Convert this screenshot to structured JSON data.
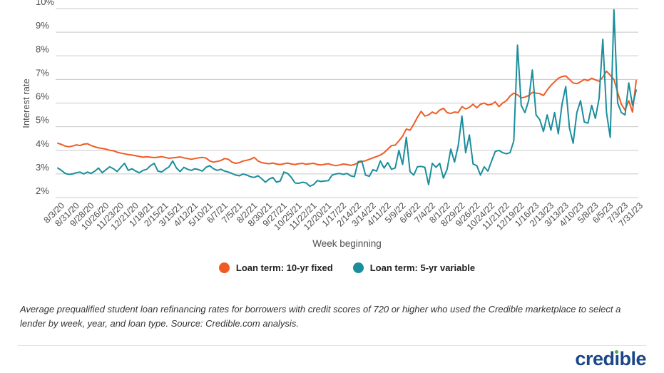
{
  "chart_data": {
    "type": "line",
    "x_axis_label": "Week beginning",
    "y_axis_label": "Interest rate",
    "x_frequency": "weekly",
    "x_tick_every_n_points": 4,
    "x_tick_labels": [
      "8/3/20",
      "8/31/20",
      "9/28/20",
      "10/26/20",
      "11/23/20",
      "12/21/20",
      "1/18/21",
      "2/15/21",
      "3/15/21",
      "4/12/21",
      "5/10/21",
      "6/7/21",
      "7/5/21",
      "8/2/21",
      "8/30/21",
      "9/27/21",
      "10/25/21",
      "11/22/21",
      "12/20/21",
      "1/17/22",
      "2/14/22",
      "3/14/22",
      "4/11/22",
      "5/9/22",
      "6/6/22",
      "7/4/22",
      "8/1/22",
      "8/29/22",
      "9/26/22",
      "10/24/22",
      "11/21/22",
      "12/19/22",
      "1/16/23",
      "2/13/23",
      "3/13/23",
      "4/10/23",
      "5/8/23",
      "6/5/23",
      "7/3/23",
      "7/31/23"
    ],
    "y_ticks": [
      2,
      3,
      4,
      5,
      6,
      7,
      8,
      9,
      10
    ],
    "y_tick_labels": [
      "2%",
      "3%",
      "4%",
      "5%",
      "6%",
      "7%",
      "8%",
      "9%",
      "10%"
    ],
    "ylim": [
      2,
      10
    ],
    "grid": "horizontal",
    "gridline_color": "#c8c8c8",
    "axis_text_color": "#4d4d4d",
    "legend_position": "bottom",
    "series": [
      {
        "name": "Loan term: 10-yr fixed",
        "color": "#f05b25",
        "values": [
          4.3,
          4.25,
          4.18,
          4.15,
          4.18,
          4.23,
          4.2,
          4.26,
          4.28,
          4.2,
          4.15,
          4.1,
          4.08,
          4.05,
          4.0,
          3.98,
          3.92,
          3.88,
          3.85,
          3.82,
          3.8,
          3.77,
          3.74,
          3.71,
          3.73,
          3.71,
          3.69,
          3.71,
          3.73,
          3.7,
          3.66,
          3.68,
          3.7,
          3.72,
          3.68,
          3.65,
          3.62,
          3.65,
          3.68,
          3.7,
          3.67,
          3.55,
          3.5,
          3.53,
          3.57,
          3.65,
          3.62,
          3.5,
          3.45,
          3.48,
          3.55,
          3.58,
          3.62,
          3.7,
          3.55,
          3.48,
          3.45,
          3.43,
          3.46,
          3.42,
          3.4,
          3.43,
          3.46,
          3.42,
          3.4,
          3.43,
          3.45,
          3.41,
          3.43,
          3.45,
          3.4,
          3.38,
          3.41,
          3.43,
          3.38,
          3.35,
          3.38,
          3.42,
          3.4,
          3.36,
          3.4,
          3.47,
          3.52,
          3.56,
          3.62,
          3.68,
          3.74,
          3.8,
          3.9,
          4.05,
          4.2,
          4.22,
          4.4,
          4.6,
          4.9,
          4.85,
          5.1,
          5.4,
          5.65,
          5.45,
          5.5,
          5.62,
          5.55,
          5.7,
          5.78,
          5.6,
          5.56,
          5.62,
          5.6,
          5.85,
          5.75,
          5.82,
          5.95,
          5.8,
          5.95,
          6.0,
          5.92,
          5.95,
          6.05,
          5.85,
          6.0,
          6.1,
          6.3,
          6.42,
          6.35,
          6.22,
          6.25,
          6.32,
          6.45,
          6.42,
          6.4,
          6.32,
          6.55,
          6.75,
          6.9,
          7.05,
          7.12,
          7.15,
          7.0,
          6.85,
          6.82,
          6.9,
          7.0,
          6.95,
          7.05,
          6.98,
          6.92,
          7.1,
          7.35,
          7.18,
          7.0,
          6.45,
          5.95,
          5.7,
          6.1,
          5.62,
          6.95
        ]
      },
      {
        "name": "Loan term: 5-yr variable",
        "color": "#1b8e9b",
        "values": [
          3.25,
          3.15,
          3.02,
          2.98,
          3.0,
          3.05,
          3.08,
          3.0,
          3.08,
          3.02,
          3.12,
          3.25,
          3.05,
          3.18,
          3.3,
          3.22,
          3.1,
          3.28,
          3.45,
          3.15,
          3.22,
          3.12,
          3.05,
          3.15,
          3.2,
          3.35,
          3.45,
          3.12,
          3.08,
          3.2,
          3.3,
          3.55,
          3.25,
          3.1,
          3.28,
          3.2,
          3.15,
          3.22,
          3.18,
          3.12,
          3.28,
          3.35,
          3.22,
          3.15,
          3.2,
          3.12,
          3.08,
          3.02,
          2.95,
          2.92,
          3.0,
          2.95,
          2.88,
          2.85,
          2.92,
          2.8,
          2.65,
          2.78,
          2.85,
          2.65,
          2.7,
          3.08,
          3.02,
          2.85,
          2.62,
          2.6,
          2.65,
          2.62,
          2.48,
          2.55,
          2.72,
          2.68,
          2.7,
          2.72,
          2.95,
          3.0,
          3.02,
          2.98,
          3.02,
          2.92,
          2.88,
          3.52,
          3.55,
          2.95,
          2.9,
          3.18,
          3.12,
          3.55,
          3.25,
          3.48,
          3.2,
          3.25,
          4.0,
          3.4,
          4.55,
          3.1,
          2.95,
          3.3,
          3.32,
          3.28,
          2.55,
          3.45,
          3.28,
          3.45,
          2.82,
          3.2,
          4.05,
          3.5,
          4.2,
          5.45,
          3.9,
          4.65,
          3.42,
          3.35,
          2.95,
          3.3,
          3.12,
          3.55,
          3.95,
          4.0,
          3.9,
          3.85,
          3.9,
          4.4,
          8.45,
          5.9,
          5.6,
          6.1,
          7.4,
          5.5,
          5.3,
          4.8,
          5.5,
          4.85,
          5.6,
          4.7,
          5.95,
          6.7,
          4.95,
          4.3,
          5.6,
          6.1,
          5.2,
          5.15,
          5.9,
          5.35,
          6.2,
          8.7,
          5.6,
          4.55,
          9.95,
          6.0,
          5.6,
          5.5,
          6.85,
          5.9,
          6.55
        ]
      }
    ]
  },
  "footnote": "Average prequalified student loan refinancing rates for borrowers with credit scores of 720 or higher who used the Credible marketplace to select a lender by week, year, and loan type. Source: Credible.com analysis.",
  "logo": {
    "brand": "credible",
    "pre": "cred",
    "dotless_i": "ı",
    "post": "ble",
    "navy": "#1b4688",
    "dot_green": "#3cb54a"
  }
}
